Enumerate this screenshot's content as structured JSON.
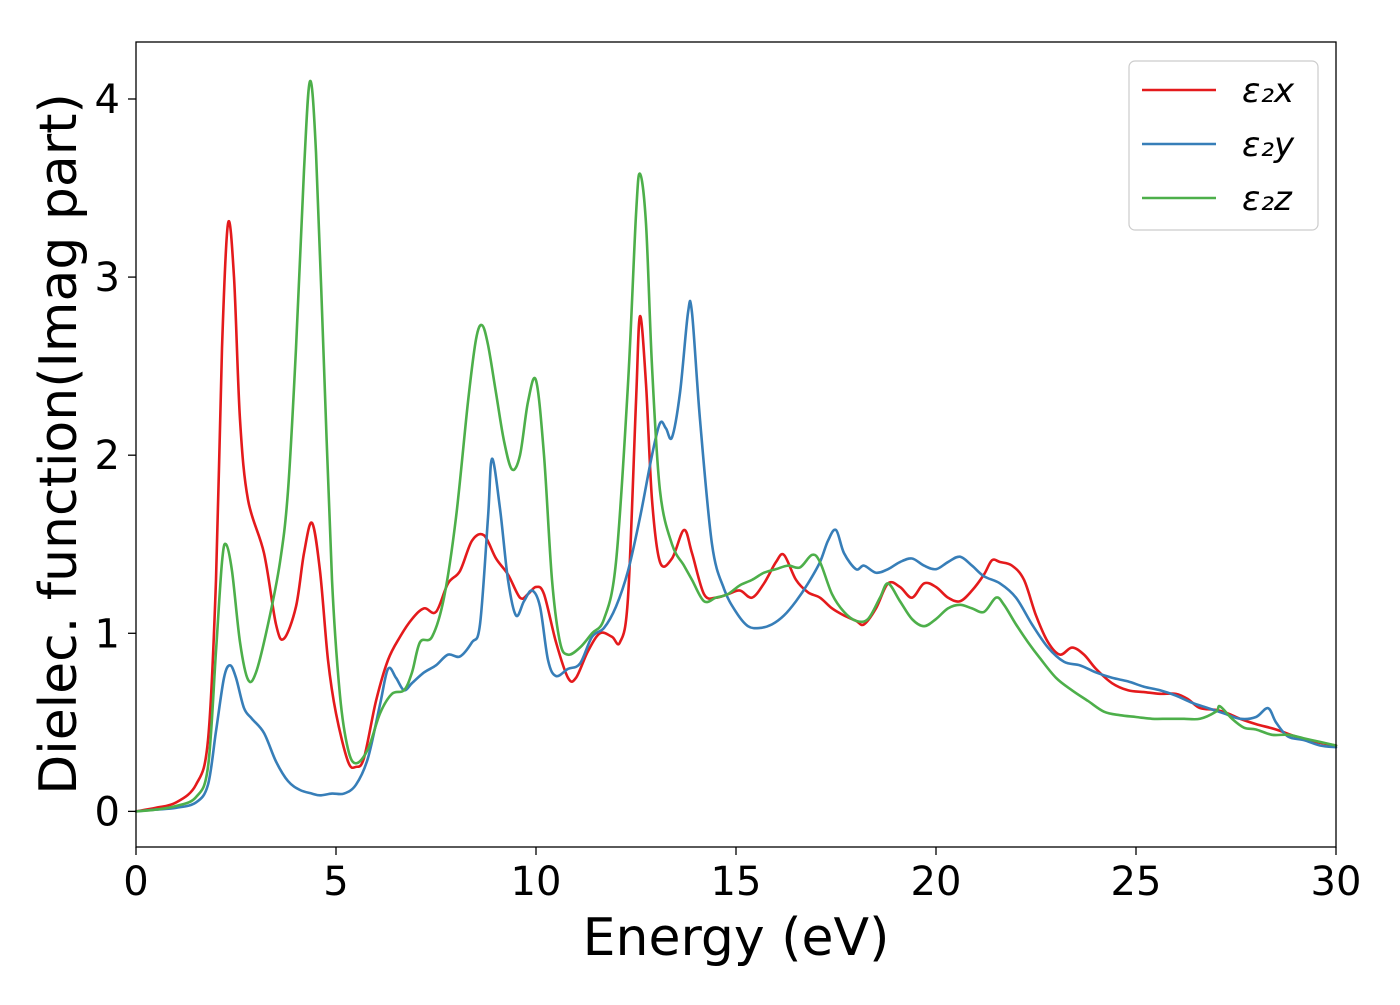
{
  "chart_data": {
    "type": "line",
    "title": "",
    "xlabel": "Energy (eV)",
    "ylabel": "Dielec. function(Imag part)",
    "xlim": [
      0,
      30
    ],
    "ylim": [
      -0.2,
      4.32
    ],
    "xticks": [
      0,
      5,
      10,
      15,
      20,
      25,
      30
    ],
    "yticks": [
      0,
      1,
      2,
      3,
      4
    ],
    "grid": false,
    "legend_position": "top-right",
    "series": [
      {
        "name": "ε₂x",
        "color": "#e41a1c",
        "points": [
          [
            0,
            0
          ],
          [
            0.5,
            0.02
          ],
          [
            1.0,
            0.05
          ],
          [
            1.5,
            0.15
          ],
          [
            1.8,
            0.4
          ],
          [
            2.0,
            1.3
          ],
          [
            2.15,
            2.6
          ],
          [
            2.3,
            3.3
          ],
          [
            2.45,
            3.0
          ],
          [
            2.6,
            2.2
          ],
          [
            2.8,
            1.75
          ],
          [
            3.2,
            1.45
          ],
          [
            3.5,
            1.05
          ],
          [
            3.7,
            0.97
          ],
          [
            4.0,
            1.15
          ],
          [
            4.2,
            1.45
          ],
          [
            4.4,
            1.62
          ],
          [
            4.6,
            1.35
          ],
          [
            4.8,
            0.85
          ],
          [
            5.0,
            0.55
          ],
          [
            5.3,
            0.28
          ],
          [
            5.5,
            0.25
          ],
          [
            5.7,
            0.3
          ],
          [
            6.0,
            0.62
          ],
          [
            6.3,
            0.85
          ],
          [
            6.6,
            0.98
          ],
          [
            6.9,
            1.08
          ],
          [
            7.2,
            1.14
          ],
          [
            7.5,
            1.12
          ],
          [
            7.8,
            1.28
          ],
          [
            8.1,
            1.35
          ],
          [
            8.4,
            1.52
          ],
          [
            8.7,
            1.55
          ],
          [
            9.0,
            1.42
          ],
          [
            9.3,
            1.33
          ],
          [
            9.6,
            1.2
          ],
          [
            9.8,
            1.22
          ],
          [
            10.0,
            1.26
          ],
          [
            10.2,
            1.22
          ],
          [
            10.5,
            0.95
          ],
          [
            10.8,
            0.75
          ],
          [
            11.0,
            0.75
          ],
          [
            11.3,
            0.9
          ],
          [
            11.6,
            1.0
          ],
          [
            11.9,
            0.98
          ],
          [
            12.1,
            0.95
          ],
          [
            12.3,
            1.2
          ],
          [
            12.5,
            2.3
          ],
          [
            12.6,
            2.78
          ],
          [
            12.75,
            2.4
          ],
          [
            12.9,
            1.75
          ],
          [
            13.1,
            1.4
          ],
          [
            13.4,
            1.42
          ],
          [
            13.7,
            1.58
          ],
          [
            13.9,
            1.45
          ],
          [
            14.2,
            1.22
          ],
          [
            14.5,
            1.2
          ],
          [
            14.8,
            1.22
          ],
          [
            15.1,
            1.24
          ],
          [
            15.4,
            1.2
          ],
          [
            15.7,
            1.28
          ],
          [
            16.0,
            1.4
          ],
          [
            16.2,
            1.44
          ],
          [
            16.5,
            1.3
          ],
          [
            16.8,
            1.23
          ],
          [
            17.1,
            1.2
          ],
          [
            17.4,
            1.14
          ],
          [
            17.7,
            1.1
          ],
          [
            18.0,
            1.07
          ],
          [
            18.2,
            1.05
          ],
          [
            18.5,
            1.14
          ],
          [
            18.8,
            1.28
          ],
          [
            19.1,
            1.26
          ],
          [
            19.4,
            1.2
          ],
          [
            19.7,
            1.28
          ],
          [
            20.0,
            1.26
          ],
          [
            20.3,
            1.2
          ],
          [
            20.6,
            1.18
          ],
          [
            20.9,
            1.24
          ],
          [
            21.2,
            1.33
          ],
          [
            21.4,
            1.41
          ],
          [
            21.6,
            1.4
          ],
          [
            21.9,
            1.38
          ],
          [
            22.2,
            1.3
          ],
          [
            22.5,
            1.1
          ],
          [
            22.8,
            0.95
          ],
          [
            23.1,
            0.88
          ],
          [
            23.4,
            0.92
          ],
          [
            23.7,
            0.88
          ],
          [
            24.0,
            0.8
          ],
          [
            24.4,
            0.72
          ],
          [
            24.8,
            0.68
          ],
          [
            25.2,
            0.67
          ],
          [
            25.6,
            0.66
          ],
          [
            26.0,
            0.66
          ],
          [
            26.3,
            0.63
          ],
          [
            26.6,
            0.58
          ],
          [
            27.0,
            0.57
          ],
          [
            27.3,
            0.55
          ],
          [
            27.6,
            0.52
          ],
          [
            28.0,
            0.49
          ],
          [
            28.5,
            0.46
          ],
          [
            29.0,
            0.42
          ],
          [
            29.5,
            0.39
          ],
          [
            30.0,
            0.37
          ]
        ]
      },
      {
        "name": "ε₂y",
        "color": "#377eb8",
        "points": [
          [
            0,
            0
          ],
          [
            0.5,
            0.01
          ],
          [
            1.0,
            0.02
          ],
          [
            1.5,
            0.05
          ],
          [
            1.8,
            0.15
          ],
          [
            2.0,
            0.45
          ],
          [
            2.2,
            0.75
          ],
          [
            2.35,
            0.82
          ],
          [
            2.5,
            0.75
          ],
          [
            2.7,
            0.58
          ],
          [
            2.9,
            0.52
          ],
          [
            3.2,
            0.44
          ],
          [
            3.5,
            0.28
          ],
          [
            3.8,
            0.17
          ],
          [
            4.1,
            0.12
          ],
          [
            4.4,
            0.1
          ],
          [
            4.6,
            0.09
          ],
          [
            4.9,
            0.1
          ],
          [
            5.2,
            0.1
          ],
          [
            5.5,
            0.15
          ],
          [
            5.8,
            0.3
          ],
          [
            6.1,
            0.6
          ],
          [
            6.3,
            0.8
          ],
          [
            6.5,
            0.75
          ],
          [
            6.7,
            0.68
          ],
          [
            6.9,
            0.72
          ],
          [
            7.2,
            0.78
          ],
          [
            7.5,
            0.82
          ],
          [
            7.8,
            0.88
          ],
          [
            8.1,
            0.87
          ],
          [
            8.4,
            0.95
          ],
          [
            8.6,
            1.05
          ],
          [
            8.8,
            1.65
          ],
          [
            8.9,
            1.98
          ],
          [
            9.1,
            1.7
          ],
          [
            9.3,
            1.3
          ],
          [
            9.5,
            1.1
          ],
          [
            9.7,
            1.18
          ],
          [
            9.9,
            1.24
          ],
          [
            10.1,
            1.15
          ],
          [
            10.3,
            0.85
          ],
          [
            10.5,
            0.76
          ],
          [
            10.8,
            0.8
          ],
          [
            11.1,
            0.83
          ],
          [
            11.4,
            0.98
          ],
          [
            11.7,
            1.03
          ],
          [
            12.0,
            1.15
          ],
          [
            12.3,
            1.35
          ],
          [
            12.6,
            1.65
          ],
          [
            12.9,
            2.0
          ],
          [
            13.1,
            2.18
          ],
          [
            13.25,
            2.15
          ],
          [
            13.4,
            2.1
          ],
          [
            13.6,
            2.35
          ],
          [
            13.8,
            2.8
          ],
          [
            13.9,
            2.8
          ],
          [
            14.1,
            2.2
          ],
          [
            14.4,
            1.5
          ],
          [
            14.7,
            1.25
          ],
          [
            15.0,
            1.12
          ],
          [
            15.3,
            1.04
          ],
          [
            15.6,
            1.03
          ],
          [
            15.9,
            1.05
          ],
          [
            16.2,
            1.1
          ],
          [
            16.5,
            1.18
          ],
          [
            16.8,
            1.28
          ],
          [
            17.1,
            1.4
          ],
          [
            17.3,
            1.52
          ],
          [
            17.5,
            1.58
          ],
          [
            17.7,
            1.45
          ],
          [
            18.0,
            1.36
          ],
          [
            18.2,
            1.38
          ],
          [
            18.5,
            1.34
          ],
          [
            18.8,
            1.36
          ],
          [
            19.1,
            1.4
          ],
          [
            19.4,
            1.42
          ],
          [
            19.7,
            1.38
          ],
          [
            20.0,
            1.36
          ],
          [
            20.3,
            1.4
          ],
          [
            20.6,
            1.43
          ],
          [
            20.9,
            1.38
          ],
          [
            21.2,
            1.32
          ],
          [
            21.6,
            1.28
          ],
          [
            22.0,
            1.2
          ],
          [
            22.4,
            1.05
          ],
          [
            22.8,
            0.92
          ],
          [
            23.2,
            0.84
          ],
          [
            23.6,
            0.82
          ],
          [
            24.0,
            0.78
          ],
          [
            24.4,
            0.75
          ],
          [
            24.8,
            0.73
          ],
          [
            25.2,
            0.7
          ],
          [
            25.6,
            0.68
          ],
          [
            26.0,
            0.65
          ],
          [
            26.4,
            0.61
          ],
          [
            26.8,
            0.58
          ],
          [
            27.2,
            0.55
          ],
          [
            27.6,
            0.52
          ],
          [
            28.0,
            0.53
          ],
          [
            28.3,
            0.58
          ],
          [
            28.5,
            0.5
          ],
          [
            28.8,
            0.42
          ],
          [
            29.2,
            0.4
          ],
          [
            29.6,
            0.37
          ],
          [
            30.0,
            0.36
          ]
        ]
      },
      {
        "name": "ε₂z",
        "color": "#4daf4a",
        "points": [
          [
            0,
            0
          ],
          [
            0.5,
            0.01
          ],
          [
            1.0,
            0.03
          ],
          [
            1.5,
            0.08
          ],
          [
            1.8,
            0.25
          ],
          [
            2.0,
            0.9
          ],
          [
            2.15,
            1.4
          ],
          [
            2.25,
            1.5
          ],
          [
            2.4,
            1.35
          ],
          [
            2.6,
            0.95
          ],
          [
            2.8,
            0.74
          ],
          [
            3.0,
            0.78
          ],
          [
            3.3,
            1.05
          ],
          [
            3.6,
            1.4
          ],
          [
            3.8,
            1.8
          ],
          [
            4.0,
            2.6
          ],
          [
            4.2,
            3.6
          ],
          [
            4.35,
            4.1
          ],
          [
            4.5,
            3.7
          ],
          [
            4.7,
            2.5
          ],
          [
            4.9,
            1.3
          ],
          [
            5.1,
            0.65
          ],
          [
            5.3,
            0.35
          ],
          [
            5.5,
            0.27
          ],
          [
            5.8,
            0.35
          ],
          [
            6.1,
            0.55
          ],
          [
            6.4,
            0.66
          ],
          [
            6.7,
            0.68
          ],
          [
            6.9,
            0.78
          ],
          [
            7.1,
            0.95
          ],
          [
            7.4,
            0.98
          ],
          [
            7.7,
            1.2
          ],
          [
            8.0,
            1.65
          ],
          [
            8.3,
            2.3
          ],
          [
            8.5,
            2.65
          ],
          [
            8.65,
            2.73
          ],
          [
            8.8,
            2.62
          ],
          [
            9.0,
            2.35
          ],
          [
            9.2,
            2.08
          ],
          [
            9.4,
            1.92
          ],
          [
            9.6,
            2.0
          ],
          [
            9.8,
            2.3
          ],
          [
            10.0,
            2.42
          ],
          [
            10.2,
            2.0
          ],
          [
            10.4,
            1.3
          ],
          [
            10.6,
            0.95
          ],
          [
            10.8,
            0.88
          ],
          [
            11.1,
            0.92
          ],
          [
            11.4,
            1.0
          ],
          [
            11.7,
            1.08
          ],
          [
            12.0,
            1.4
          ],
          [
            12.3,
            2.4
          ],
          [
            12.5,
            3.35
          ],
          [
            12.6,
            3.58
          ],
          [
            12.75,
            3.3
          ],
          [
            12.9,
            2.5
          ],
          [
            13.1,
            1.8
          ],
          [
            13.4,
            1.5
          ],
          [
            13.7,
            1.38
          ],
          [
            13.9,
            1.3
          ],
          [
            14.2,
            1.18
          ],
          [
            14.5,
            1.2
          ],
          [
            14.8,
            1.22
          ],
          [
            15.1,
            1.27
          ],
          [
            15.4,
            1.3
          ],
          [
            15.7,
            1.34
          ],
          [
            16.0,
            1.36
          ],
          [
            16.3,
            1.38
          ],
          [
            16.6,
            1.37
          ],
          [
            16.9,
            1.44
          ],
          [
            17.1,
            1.4
          ],
          [
            17.4,
            1.22
          ],
          [
            17.7,
            1.12
          ],
          [
            18.0,
            1.07
          ],
          [
            18.3,
            1.08
          ],
          [
            18.6,
            1.2
          ],
          [
            18.8,
            1.28
          ],
          [
            19.1,
            1.18
          ],
          [
            19.4,
            1.08
          ],
          [
            19.7,
            1.04
          ],
          [
            20.0,
            1.08
          ],
          [
            20.3,
            1.14
          ],
          [
            20.6,
            1.16
          ],
          [
            20.9,
            1.14
          ],
          [
            21.2,
            1.12
          ],
          [
            21.5,
            1.2
          ],
          [
            21.7,
            1.16
          ],
          [
            22.0,
            1.05
          ],
          [
            22.3,
            0.95
          ],
          [
            22.6,
            0.86
          ],
          [
            23.0,
            0.75
          ],
          [
            23.4,
            0.68
          ],
          [
            23.8,
            0.62
          ],
          [
            24.2,
            0.56
          ],
          [
            24.6,
            0.54
          ],
          [
            25.0,
            0.53
          ],
          [
            25.4,
            0.52
          ],
          [
            25.8,
            0.52
          ],
          [
            26.2,
            0.52
          ],
          [
            26.6,
            0.52
          ],
          [
            27.0,
            0.56
          ],
          [
            27.1,
            0.59
          ],
          [
            27.4,
            0.52
          ],
          [
            27.7,
            0.47
          ],
          [
            28.0,
            0.46
          ],
          [
            28.4,
            0.43
          ],
          [
            28.8,
            0.43
          ],
          [
            29.2,
            0.41
          ],
          [
            29.6,
            0.39
          ],
          [
            30.0,
            0.37
          ]
        ]
      }
    ]
  }
}
